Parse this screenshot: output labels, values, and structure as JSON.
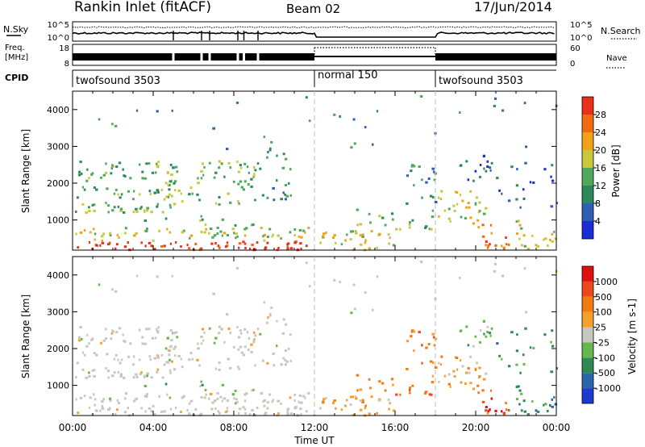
{
  "header": {
    "station": "Rankin Inlet (fitACF)",
    "beam": "Beam 02",
    "date": "17/Jun/2014"
  },
  "labels": {
    "nsky": "N.Sky",
    "nsearch": "N.Search",
    "freq_line1": "Freq.",
    "freq_line2": "[MHz]",
    "nave": "Nave",
    "cpid": "CPID",
    "x_axis": "Time UT"
  },
  "chart_data": [
    {
      "type": "line",
      "panel": "noise",
      "ylabels_left": [
        "10^5",
        "10^0"
      ],
      "ylabels_right": [
        "10^5",
        "10^0"
      ],
      "series": [
        {
          "name": "N.Sky"
        },
        {
          "name": "N.Search"
        }
      ]
    },
    {
      "type": "line",
      "panel": "frequency",
      "ylabels_left": [
        "18",
        "8"
      ],
      "ylabels_right": [
        "60",
        "0"
      ],
      "series": [
        {
          "name": "Freq."
        },
        {
          "name": "Nave"
        }
      ]
    },
    {
      "type": "table",
      "panel": "cpid",
      "segments": [
        {
          "start": 0,
          "end": 12,
          "label": "twofsound 3503"
        },
        {
          "start": 12,
          "end": 18,
          "label": "normal 150"
        },
        {
          "start": 18,
          "end": 24,
          "label": "twofsound 3503"
        }
      ]
    },
    {
      "type": "heatmap",
      "panel": "power",
      "xlabel": "Time UT",
      "ylabel": "Slant Range [km]",
      "xlim": [
        0,
        24
      ],
      "ylim": [
        180,
        4500
      ],
      "xticks": [
        "00:00",
        "04:00",
        "08:00",
        "12:00",
        "16:00",
        "20:00",
        "00:00"
      ],
      "yticks": [
        1000,
        2000,
        3000,
        4000
      ],
      "colorbar": {
        "label": "Power [dB]",
        "ticks": [
          4,
          8,
          12,
          16,
          20,
          24,
          28
        ],
        "colors": [
          "#1a2cd6",
          "#2f5fb0",
          "#2a8a5a",
          "#52a85a",
          "#c8c83a",
          "#f2a21a",
          "#ef6a10",
          "#e8301a"
        ]
      }
    },
    {
      "type": "heatmap",
      "panel": "velocity",
      "xlabel": "Time UT",
      "ylabel": "Slant Range [km]",
      "xlim": [
        0,
        24
      ],
      "ylim": [
        180,
        4500
      ],
      "xticks": [
        "00:00",
        "04:00",
        "08:00",
        "12:00",
        "16:00",
        "20:00",
        "00:00"
      ],
      "yticks": [
        1000,
        2000,
        3000,
        4000
      ],
      "colorbar": {
        "label": "Velocity [m s-1]",
        "ticks": [
          "1000",
          "500",
          "100",
          "25",
          "-25",
          "-100",
          "-500",
          "-1000"
        ],
        "colors": [
          "#1a3ad0",
          "#2a66a8",
          "#2e8a55",
          "#66b84e",
          "#c7c7c2",
          "#f5a02a",
          "#f27a12",
          "#ea4a1a",
          "#e01010"
        ]
      }
    }
  ]
}
